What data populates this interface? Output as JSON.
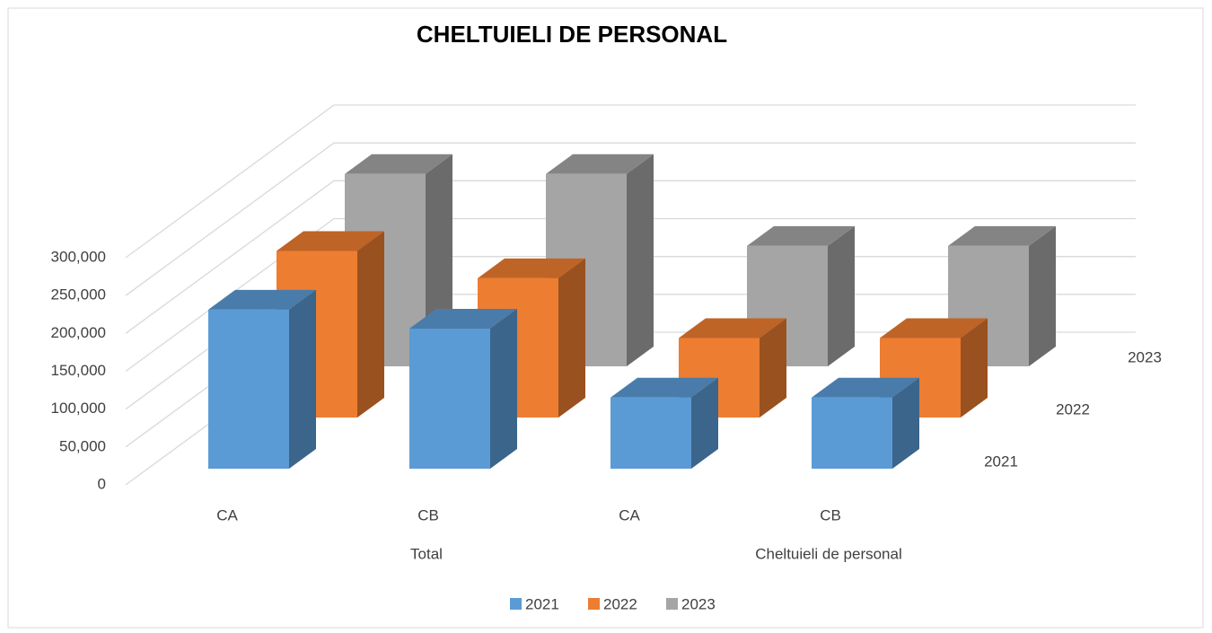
{
  "chart_data": {
    "type": "bar3d",
    "title": "CHELTUIELI DE PERSONAL",
    "categories": [
      "CA",
      "CB",
      "CA",
      "CB"
    ],
    "groups": [
      {
        "label": "Total",
        "span": 2
      },
      {
        "label": "Cheltuieli de personal",
        "span": 2
      }
    ],
    "series": [
      {
        "name": "2021",
        "color": "#5b9bd5",
        "values": [
          210000,
          185000,
          94000,
          94000
        ]
      },
      {
        "name": "2022",
        "color": "#ed7d31",
        "values": [
          220000,
          184000,
          105000,
          105000
        ]
      },
      {
        "name": "2023",
        "color": "#a5a5a5",
        "values": [
          254000,
          254000,
          159000,
          159000
        ]
      }
    ],
    "ylim": [
      0,
      300000
    ],
    "yticks": [
      0,
      {
        "value": 50000,
        "label": "50,000"
      },
      {
        "value": 100000,
        "label": "100,000"
      },
      {
        "value": 150000,
        "label": "150,000"
      },
      {
        "value": 200000,
        "label": "200,000"
      },
      {
        "value": 250000,
        "label": "250,000"
      },
      {
        "value": 300000,
        "label": "300,000"
      }
    ],
    "grid": true,
    "legend": "bottom"
  }
}
